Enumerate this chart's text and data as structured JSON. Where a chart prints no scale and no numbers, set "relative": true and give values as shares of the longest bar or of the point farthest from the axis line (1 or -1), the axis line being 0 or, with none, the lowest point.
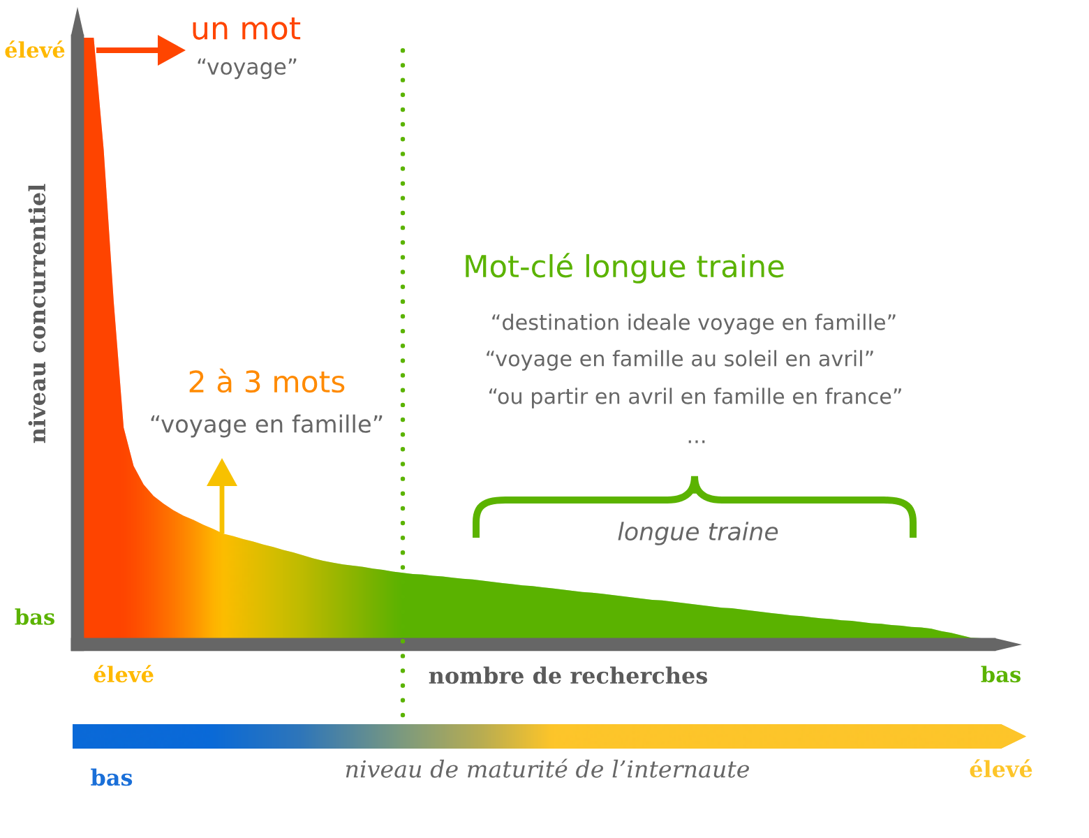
{
  "chart_data": {
    "type": "area",
    "relative": true,
    "xlabel": "nombre de recherches",
    "ylabel": "niveau concurrentiel",
    "categories": [
      null,
      null,
      null,
      null,
      "élevé",
      null,
      null,
      null,
      null,
      null,
      null,
      null,
      null,
      null,
      null,
      null,
      null,
      null,
      null,
      null,
      null,
      null,
      null,
      null,
      null,
      null,
      null,
      null,
      null,
      null,
      null,
      null,
      null,
      null,
      null,
      null,
      null,
      null,
      null,
      null,
      null,
      null,
      null,
      null,
      null,
      null,
      null,
      null,
      null,
      null,
      null,
      null,
      null,
      null,
      null,
      null,
      null,
      null,
      null,
      null,
      null,
      null,
      null,
      null,
      null,
      null,
      null,
      null,
      null,
      null,
      null,
      null,
      null,
      null,
      null,
      null,
      null,
      null,
      null,
      null,
      null,
      null,
      null,
      null,
      null,
      null,
      null,
      null,
      null,
      null,
      null,
      null,
      "bas"
    ],
    "values": [
      1.0,
      1.0,
      0.813,
      0.561,
      0.351,
      0.287,
      0.256,
      0.237,
      0.224,
      0.213,
      0.204,
      0.197,
      0.189,
      0.182,
      0.174,
      0.17,
      0.165,
      0.161,
      0.156,
      0.152,
      0.147,
      0.143,
      0.138,
      0.133,
      0.129,
      0.126,
      0.123,
      0.121,
      0.119,
      0.116,
      0.114,
      0.111,
      0.109,
      0.107,
      0.106,
      0.104,
      0.103,
      0.101,
      0.099,
      0.098,
      0.096,
      0.094,
      0.092,
      0.09,
      0.088,
      0.087,
      0.085,
      0.083,
      0.081,
      0.079,
      0.077,
      0.076,
      0.074,
      0.072,
      0.07,
      0.068,
      0.066,
      0.064,
      0.063,
      0.061,
      0.059,
      0.057,
      0.055,
      0.053,
      0.051,
      0.05,
      0.048,
      0.046,
      0.044,
      0.042,
      0.04,
      0.038,
      0.037,
      0.035,
      0.033,
      0.032,
      0.03,
      0.029,
      0.027,
      0.025,
      0.024,
      0.022,
      0.021,
      0.019,
      0.018,
      0.016,
      0.012,
      0.009,
      0.005,
      0.001,
      0,
      0,
      0
    ],
    "colors": [
      "#ff4400",
      "#ff4400",
      "#ff4400",
      "#ff4400",
      "#ff4600",
      "#ff4d00",
      "#ff5600",
      "#ff6000",
      "#ff6c00",
      "#ff7800",
      "#ff8600",
      "#ff9400",
      "#ffa400",
      "#ffb400",
      "#fdbd00",
      "#f5bd00",
      "#edbd00",
      "#e5bd00",
      "#ddbe00",
      "#d5be00",
      "#cdbd00",
      "#c5bc00",
      "#bdbb00",
      "#b3b900",
      "#a9b800",
      "#9fb700",
      "#95b600",
      "#8bb500",
      "#81b400",
      "#77b300",
      "#6db300",
      "#63b300",
      "#5bb300",
      "#5bb300",
      "#5bb300",
      "#5bb300",
      "#5bb300",
      "#5bb300",
      "#5bb300",
      "#5bb300",
      "#5bb300",
      "#5bb300",
      "#5bb300",
      "#5bb300",
      "#5bb300",
      "#5bb300",
      "#5bb300",
      "#5bb300",
      "#5bb300",
      "#5bb300",
      "#5bb300",
      "#5bb300",
      "#5bb300",
      "#5bb300",
      "#5bb300",
      "#5bb300",
      "#5bb300",
      "#5bb300",
      "#5bb300",
      "#5bb300",
      "#5bb300",
      "#5bb300",
      "#5bb300",
      "#5bb300",
      "#5bb300",
      "#5bb300",
      "#5bb300",
      "#5bb300",
      "#5bb300",
      "#5bb300",
      "#5bb300",
      "#5bb300",
      "#5bb300",
      "#5bb300",
      "#5bb300",
      "#5bb300",
      "#5bb300",
      "#5bb300",
      "#5bb300",
      "#5bb300",
      "#5bb300",
      "#5bb300",
      "#5bb300",
      "#5bb300",
      "#5bb300",
      "#5bb300",
      "#5bb300",
      "#5bb300",
      "#5bb300",
      "#5bb300",
      "#5bb300",
      "#5bb300",
      "#5bb300"
    ],
    "annotations": [
      "élevé",
      "un mot",
      "“voyage”",
      "Mot-clé longue traine",
      "“destination ideale voyage en famille”",
      "“voyage en famille au soleil en avril”",
      "“ou partir en avril en famille en france”",
      "...",
      "2 à 3 mots",
      "“voyage en famille”",
      "longue traine",
      "bas",
      "niveau de maturité de l’internaute",
      "bas",
      "élevé"
    ]
  }
}
